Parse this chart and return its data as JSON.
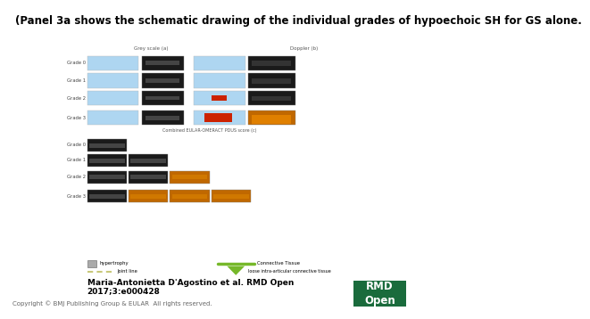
{
  "title": "(Panel 3a shows the schematic drawing of the individual grades of hypoechoic SH for GS alone.",
  "title_fontsize": 8.5,
  "title_fontweight": "bold",
  "author_line1": "Maria-Antonietta D'Agostino et al. RMD Open",
  "author_line2": "2017;3:e000428",
  "author_fontsize": 6.5,
  "copyright_text": "Copyright © BMJ Publishing Group & EULAR  All rights reserved.",
  "copyright_fontsize": 5.0,
  "rmd_box_color": "#1a6b3c",
  "rmd_text": "RMD\nOpen",
  "rmd_fontsize": 8.5,
  "bg_color": "#ffffff",
  "gs_header": "Grey scale (a)",
  "doppler_header": "Doppler (b)",
  "combined_header": "Combined EULAR-OMERACT PDUS score (c)",
  "grade_labels": [
    "Grade 0",
    "Grade 1",
    "Grade 2",
    "Grade 3"
  ],
  "header_fontsize": 4.0,
  "grade_fontsize": 3.8,
  "legend_hypertrophy_color": "#999999",
  "legend_connective_color": "#76b82a",
  "legend_joint_color": "#c8c87a",
  "legend_triangle_color": "#76b82a",
  "blue_schema_color": "#aed6f1",
  "us_dark_color": "#1a1a1a",
  "us_orange_color": "#c06800",
  "red_doppler_color": "#cc2200"
}
